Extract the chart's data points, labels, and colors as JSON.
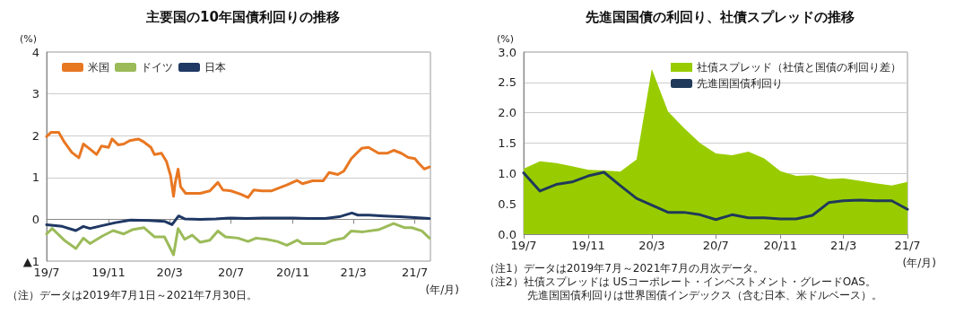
{
  "chart_data": [
    {
      "type": "line",
      "title": "主要国の10年国債利回りの推移",
      "ylabel": "(%)",
      "xlabel": "(年/月)",
      "xlim": [
        "2019-07-01",
        "2021-08-01"
      ],
      "xticks": [
        {
          "value": "2019-07-01",
          "label": "19/7"
        },
        {
          "value": "2019-11-01",
          "label": "19/11"
        },
        {
          "value": "2020-03-01",
          "label": "20/3"
        },
        {
          "value": "2020-07-01",
          "label": "20/7"
        },
        {
          "value": "2020-11-01",
          "label": "20/11"
        },
        {
          "value": "2021-03-01",
          "label": "21/3"
        },
        {
          "value": "2021-07-01",
          "label": "21/7"
        }
      ],
      "ylim": [
        -1,
        4
      ],
      "yticks": [
        {
          "value": -1,
          "label": "▲1"
        },
        0,
        1,
        2,
        3,
        4
      ],
      "grid": "y",
      "legend": "top left",
      "marker": "none",
      "annotations": [
        "（注）データは2019年7月1日～2021年7月30日。"
      ],
      "series": [
        {
          "name": "米国",
          "color": "#e87722",
          "x": [
            "2019-07-01",
            "2019-07-10",
            "2019-07-25",
            "2019-08-05",
            "2019-08-20",
            "2019-09-03",
            "2019-09-12",
            "2019-09-25",
            "2019-10-08",
            "2019-10-18",
            "2019-11-01",
            "2019-11-08",
            "2019-11-20",
            "2019-12-01",
            "2019-12-13",
            "2019-12-30",
            "2020-01-10",
            "2020-01-24",
            "2020-01-31",
            "2020-02-14",
            "2020-02-24",
            "2020-03-03",
            "2020-03-09",
            "2020-03-12",
            "2020-03-18",
            "2020-03-23",
            "2020-04-02",
            "2020-04-20",
            "2020-05-01",
            "2020-05-20",
            "2020-06-05",
            "2020-06-15",
            "2020-07-01",
            "2020-07-20",
            "2020-08-04",
            "2020-08-15",
            "2020-09-01",
            "2020-09-20",
            "2020-10-05",
            "2020-10-20",
            "2020-11-09",
            "2020-11-20",
            "2020-12-10",
            "2020-12-31",
            "2021-01-12",
            "2021-01-29",
            "2021-02-10",
            "2021-02-25",
            "2021-03-05",
            "2021-03-18",
            "2021-03-31",
            "2021-04-20",
            "2021-05-07",
            "2021-05-20",
            "2021-06-04",
            "2021-06-18",
            "2021-07-01",
            "2021-07-08",
            "2021-07-20",
            "2021-07-30"
          ],
          "values": [
            1.98,
            2.08,
            2.08,
            1.85,
            1.6,
            1.47,
            1.8,
            1.68,
            1.55,
            1.75,
            1.72,
            1.92,
            1.78,
            1.8,
            1.88,
            1.92,
            1.85,
            1.72,
            1.55,
            1.58,
            1.38,
            1.05,
            0.55,
            0.85,
            1.2,
            0.78,
            0.62,
            0.62,
            0.62,
            0.68,
            0.88,
            0.7,
            0.68,
            0.6,
            0.52,
            0.7,
            0.68,
            0.68,
            0.75,
            0.82,
            0.93,
            0.85,
            0.92,
            0.92,
            1.12,
            1.07,
            1.15,
            1.45,
            1.55,
            1.7,
            1.72,
            1.58,
            1.58,
            1.65,
            1.58,
            1.48,
            1.45,
            1.35,
            1.2,
            1.25
          ]
        },
        {
          "name": "ドイツ",
          "color": "#9bbb59",
          "x": [
            "2019-07-01",
            "2019-07-12",
            "2019-08-05",
            "2019-08-28",
            "2019-09-12",
            "2019-09-25",
            "2019-10-20",
            "2019-11-10",
            "2019-12-01",
            "2019-12-18",
            "2020-01-10",
            "2020-01-31",
            "2020-02-20",
            "2020-03-09",
            "2020-03-18",
            "2020-03-31",
            "2020-04-15",
            "2020-05-01",
            "2020-05-20",
            "2020-06-05",
            "2020-06-20",
            "2020-07-15",
            "2020-08-04",
            "2020-08-20",
            "2020-09-10",
            "2020-10-01",
            "2020-10-20",
            "2020-11-10",
            "2020-11-20",
            "2020-12-10",
            "2021-01-04",
            "2021-01-20",
            "2021-02-10",
            "2021-02-25",
            "2021-03-20",
            "2021-04-20",
            "2021-05-20",
            "2021-06-10",
            "2021-06-25",
            "2021-07-15",
            "2021-07-30"
          ],
          "values": [
            -0.35,
            -0.22,
            -0.5,
            -0.7,
            -0.45,
            -0.58,
            -0.4,
            -0.27,
            -0.35,
            -0.25,
            -0.2,
            -0.42,
            -0.42,
            -0.85,
            -0.22,
            -0.48,
            -0.38,
            -0.55,
            -0.5,
            -0.28,
            -0.42,
            -0.45,
            -0.53,
            -0.45,
            -0.48,
            -0.53,
            -0.62,
            -0.5,
            -0.58,
            -0.58,
            -0.58,
            -0.5,
            -0.45,
            -0.28,
            -0.3,
            -0.25,
            -0.1,
            -0.2,
            -0.2,
            -0.28,
            -0.45
          ]
        },
        {
          "name": "日本",
          "color": "#1f3864",
          "x": [
            "2019-07-01",
            "2019-08-01",
            "2019-08-28",
            "2019-09-12",
            "2019-09-25",
            "2019-10-20",
            "2019-11-15",
            "2019-12-15",
            "2020-01-20",
            "2020-02-20",
            "2020-03-06",
            "2020-03-19",
            "2020-03-31",
            "2020-05-01",
            "2020-06-01",
            "2020-07-01",
            "2020-08-01",
            "2020-09-01",
            "2020-10-01",
            "2020-11-01",
            "2020-12-01",
            "2021-01-04",
            "2021-02-01",
            "2021-02-26",
            "2021-03-10",
            "2021-04-01",
            "2021-05-01",
            "2021-06-01",
            "2021-07-01",
            "2021-07-30"
          ],
          "values": [
            -0.13,
            -0.17,
            -0.27,
            -0.17,
            -0.22,
            -0.15,
            -0.08,
            -0.02,
            -0.03,
            -0.05,
            -0.13,
            0.08,
            0.01,
            0.0,
            0.01,
            0.03,
            0.02,
            0.03,
            0.03,
            0.03,
            0.02,
            0.02,
            0.06,
            0.15,
            0.1,
            0.1,
            0.08,
            0.06,
            0.04,
            0.02
          ]
        }
      ]
    },
    {
      "type": "line",
      "title": "先進国国債の利回り、社債スプレッドの推移",
      "ylabel": "(%)",
      "xlabel": "(年/月)",
      "x": [
        "2019-07",
        "2019-08",
        "2019-09",
        "2019-10",
        "2019-11",
        "2019-12",
        "2020-01",
        "2020-02",
        "2020-03",
        "2020-04",
        "2020-05",
        "2020-06",
        "2020-07",
        "2020-08",
        "2020-09",
        "2020-10",
        "2020-11",
        "2020-12",
        "2021-01",
        "2021-02",
        "2021-03",
        "2021-04",
        "2021-05",
        "2021-06",
        "2021-07"
      ],
      "xlim": [
        "2019-07",
        "2021-07"
      ],
      "xticks": [
        {
          "value": "2019-07",
          "label": "19/7"
        },
        {
          "value": "2019-11",
          "label": "19/11"
        },
        {
          "value": "2020-03",
          "label": "20/3"
        },
        {
          "value": "2020-07",
          "label": "20/7"
        },
        {
          "value": "2020-11",
          "label": "20/11"
        },
        {
          "value": "2021-03",
          "label": "21/3"
        },
        {
          "value": "2021-07",
          "label": "21/7"
        }
      ],
      "ylim": [
        0,
        3
      ],
      "yticks": [
        {
          "value": 0,
          "label": "0.0"
        },
        {
          "value": 0.5,
          "label": "0.5"
        },
        {
          "value": 1,
          "label": "1.0"
        },
        {
          "value": 1.5,
          "label": "1.5"
        },
        {
          "value": 2,
          "label": "2.0"
        },
        {
          "value": 2.5,
          "label": "2.5"
        },
        {
          "value": 3,
          "label": "3.0"
        }
      ],
      "grid": "y",
      "legend": "top right",
      "marker": "none",
      "annotations": [
        "（注1）データは2019年7月～2021年7月の月次データ。",
        "（注2）社債スプレッドは USコーポレート・インベストメント・グレードOAS。",
        "　　　　先進国国債利回りは世界国債インデックス（含む日本、米ドルベース）。"
      ],
      "series": [
        {
          "name": "社債スプレッド（社債と国債の利回り差）",
          "type": "area",
          "color": "#99cc00",
          "values": [
            1.08,
            1.2,
            1.17,
            1.12,
            1.06,
            1.05,
            1.03,
            1.23,
            2.72,
            2.02,
            1.75,
            1.5,
            1.33,
            1.3,
            1.36,
            1.25,
            1.04,
            0.96,
            0.97,
            0.91,
            0.92,
            0.88,
            0.84,
            0.8,
            0.86
          ]
        },
        {
          "name": "先進国国債利回り",
          "color": "#1f3a5a",
          "values": [
            1.01,
            0.71,
            0.82,
            0.86,
            0.96,
            1.02,
            0.8,
            0.59,
            0.48,
            0.36,
            0.36,
            0.32,
            0.24,
            0.32,
            0.27,
            0.27,
            0.25,
            0.25,
            0.31,
            0.52,
            0.55,
            0.56,
            0.55,
            0.55,
            0.41
          ]
        }
      ]
    }
  ]
}
